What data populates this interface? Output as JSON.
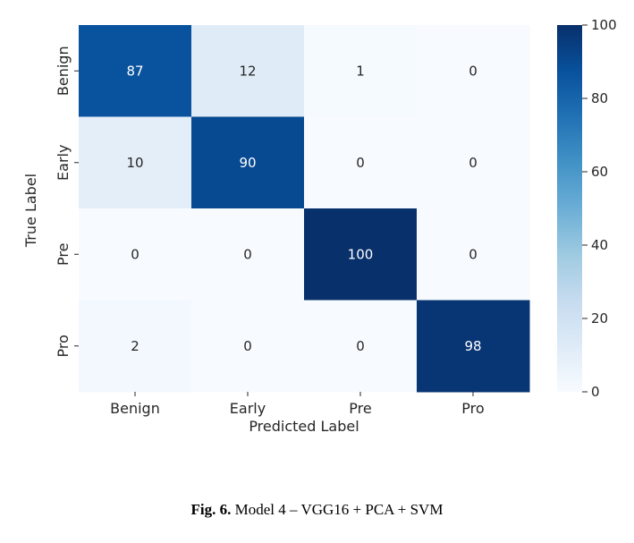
{
  "chart_data": {
    "type": "heatmap",
    "xlabel": "Predicted Label",
    "ylabel": "True Label",
    "x_categories": [
      "Benign",
      "Early",
      "Pre",
      "Pro"
    ],
    "y_categories": [
      "Benign",
      "Early",
      "Pre",
      "Pro"
    ],
    "values": [
      [
        87,
        12,
        1,
        0
      ],
      [
        10,
        90,
        0,
        0
      ],
      [
        0,
        0,
        100,
        0
      ],
      [
        2,
        0,
        0,
        98
      ]
    ],
    "colorbar": {
      "min": 0,
      "max": 100,
      "ticks": [
        0,
        20,
        40,
        60,
        80,
        100
      ],
      "colormap": "Blues"
    }
  },
  "caption": {
    "label": "Fig. 6.",
    "text": " Model 4 – VGG16 + PCA + SVM"
  }
}
